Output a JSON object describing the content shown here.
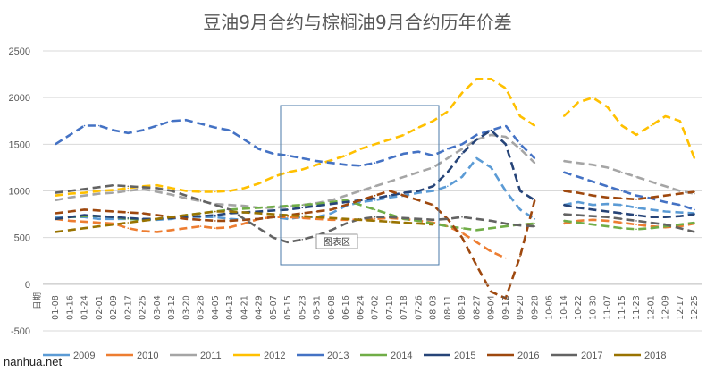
{
  "chart_data": {
    "type": "line",
    "title": "豆油9月合约与棕榈油9月合约历年价差",
    "xlabel": "",
    "x_axis_first_label": "日期",
    "ylabel": "",
    "ylim": [
      -500,
      2500
    ],
    "yticks": [
      -500,
      0,
      500,
      1000,
      1500,
      2000,
      2500
    ],
    "grid": "horizontal",
    "legend_position": "bottom",
    "x_categories": [
      "01-08",
      "01-16",
      "01-24",
      "02-01",
      "02-09",
      "02-17",
      "02-25",
      "03-04",
      "03-12",
      "03-20",
      "03-28",
      "04-05",
      "04-13",
      "04-21",
      "04-29",
      "05-07",
      "05-15",
      "05-23",
      "05-31",
      "06-08",
      "06-16",
      "06-24",
      "07-02",
      "07-10",
      "07-18",
      "07-26",
      "08-03",
      "08-11",
      "08-19",
      "08-27",
      "09-04",
      "09-12",
      "09-20",
      "09-28",
      "10-06",
      "10-14",
      "10-22",
      "10-30",
      "11-07",
      "11-15",
      "11-23",
      "12-01",
      "12-09",
      "12-17",
      "12-25"
    ],
    "series": [
      {
        "name": "2009",
        "color": "#5b9bd5",
        "dash": "dash",
        "values": [
          720,
          720,
          720,
          700,
          700,
          700,
          690,
          690,
          700,
          730,
          720,
          720,
          700,
          690,
          700,
          720,
          700,
          720,
          720,
          760,
          840,
          880,
          900,
          930,
          950,
          980,
          1000,
          1050,
          1150,
          1350,
          1250,
          1000,
          800,
          700,
          null,
          850,
          880,
          850,
          860,
          850,
          820,
          800,
          780,
          770,
          760
        ]
      },
      {
        "name": "2010",
        "color": "#ed7d31",
        "dash": "dash",
        "values": [
          700,
          680,
          670,
          660,
          650,
          600,
          570,
          560,
          580,
          600,
          620,
          600,
          610,
          650,
          700,
          720,
          720,
          710,
          700,
          690,
          690,
          690,
          700,
          710,
          700,
          680,
          660,
          620,
          550,
          450,
          350,
          280,
          null,
          null,
          null,
          650,
          680,
          690,
          680,
          660,
          640,
          620,
          610,
          620,
          650
        ]
      },
      {
        "name": "2011",
        "color": "#a5a5a5",
        "dash": "dash",
        "values": [
          900,
          930,
          950,
          970,
          980,
          1000,
          1020,
          990,
          960,
          920,
          890,
          860,
          850,
          840,
          820,
          820,
          830,
          850,
          870,
          900,
          950,
          1000,
          1050,
          1100,
          1150,
          1200,
          1250,
          1350,
          1450,
          1550,
          1600,
          1580,
          1450,
          1300,
          null,
          1320,
          1300,
          1280,
          1250,
          1200,
          1150,
          1100,
          1050,
          1000,
          970
        ]
      },
      {
        "name": "2012",
        "color": "#ffc000",
        "dash": "dash",
        "values": [
          950,
          970,
          980,
          1000,
          1010,
          1030,
          1050,
          1060,
          1030,
          1000,
          990,
          990,
          1000,
          1030,
          1080,
          1150,
          1200,
          1230,
          1280,
          1330,
          1380,
          1450,
          1500,
          1550,
          1600,
          1680,
          1750,
          1850,
          2050,
          2200,
          2200,
          2100,
          1800,
          1700,
          null,
          1800,
          1950,
          2000,
          1900,
          1700,
          1600,
          1700,
          1800,
          1750,
          1350
        ]
      },
      {
        "name": "2013",
        "color": "#4472c4",
        "dash": "dash",
        "values": [
          1500,
          1600,
          1700,
          1700,
          1650,
          1620,
          1650,
          1700,
          1750,
          1760,
          1720,
          1680,
          1650,
          1550,
          1450,
          1400,
          1380,
          1350,
          1320,
          1300,
          1280,
          1270,
          1300,
          1350,
          1400,
          1420,
          1380,
          1450,
          1500,
          1600,
          1650,
          1700,
          1500,
          1350,
          null,
          1200,
          1150,
          1100,
          1050,
          1000,
          950,
          920,
          880,
          850,
          800
        ]
      },
      {
        "name": "2014",
        "color": "#70ad47",
        "dash": "dash",
        "values": [
          700,
          720,
          730,
          730,
          720,
          700,
          690,
          700,
          720,
          740,
          760,
          780,
          800,
          810,
          820,
          830,
          840,
          850,
          860,
          880,
          900,
          850,
          800,
          750,
          700,
          680,
          650,
          620,
          600,
          580,
          600,
          620,
          640,
          650,
          null,
          680,
          660,
          640,
          620,
          600,
          590,
          600,
          620,
          640,
          660
        ]
      },
      {
        "name": "2015",
        "color": "#264478",
        "dash": "dash",
        "values": [
          700,
          720,
          740,
          730,
          720,
          710,
          700,
          700,
          710,
          720,
          730,
          740,
          760,
          770,
          780,
          790,
          800,
          820,
          840,
          860,
          880,
          900,
          920,
          950,
          980,
          1000,
          1050,
          1200,
          1400,
          1550,
          1650,
          1500,
          1000,
          900,
          null,
          850,
          820,
          800,
          780,
          760,
          740,
          720,
          720,
          730,
          750
        ]
      },
      {
        "name": "2016",
        "color": "#9e480e",
        "dash": "dash",
        "values": [
          760,
          780,
          800,
          790,
          780,
          770,
          760,
          740,
          720,
          700,
          690,
          680,
          680,
          690,
          700,
          720,
          740,
          760,
          780,
          800,
          850,
          900,
          950,
          1000,
          950,
          900,
          850,
          700,
          500,
          200,
          -80,
          -150,
          300,
          900,
          null,
          1000,
          980,
          950,
          930,
          920,
          910,
          930,
          950,
          970,
          990
        ]
      },
      {
        "name": "2017",
        "color": "#636363",
        "dash": "dash",
        "values": [
          980,
          1000,
          1020,
          1040,
          1060,
          1050,
          1040,
          1030,
          1000,
          950,
          900,
          850,
          800,
          700,
          600,
          500,
          450,
          480,
          520,
          580,
          650,
          700,
          720,
          720,
          710,
          700,
          690,
          700,
          720,
          700,
          680,
          650,
          630,
          620,
          null,
          750,
          740,
          730,
          720,
          700,
          680,
          660,
          640,
          600,
          560
        ]
      },
      {
        "name": "2018",
        "color": "#997300",
        "dash": "dash",
        "values": [
          560,
          580,
          600,
          620,
          640,
          660,
          680,
          700,
          720,
          740,
          760,
          780,
          780,
          770,
          760,
          750,
          740,
          730,
          720,
          710,
          700,
          690,
          680,
          670,
          660,
          650,
          640,
          null,
          null,
          null,
          null,
          null,
          null,
          null,
          null,
          null,
          null,
          null,
          null,
          null,
          null,
          null,
          null,
          null,
          null
        ]
      }
    ],
    "annotation": "图表区"
  },
  "footer": {
    "watermark": "nanhua.net"
  }
}
